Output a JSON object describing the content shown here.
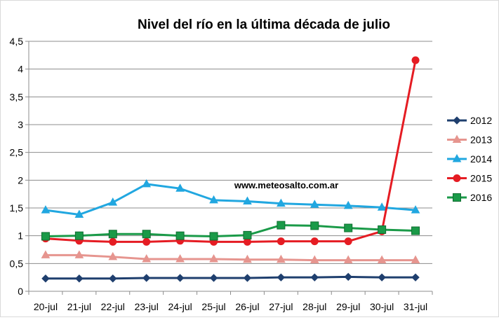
{
  "chart_data": {
    "type": "line",
    "title": "Nivel del río en la última década de julio",
    "watermark": "www.meteosalto.com.ar",
    "categories": [
      "20-jul",
      "21-jul",
      "22-jul",
      "23-jul",
      "24-jul",
      "25-jul",
      "26-jul",
      "27-jul",
      "28-jul",
      "29-jul",
      "30-jul",
      "31-jul"
    ],
    "ylim": [
      0,
      4.5
    ],
    "yticks": [
      "0",
      "0,5",
      "1",
      "1,5",
      "2",
      "2,5",
      "3",
      "3,5",
      "4",
      "4,5"
    ],
    "ytick_values": [
      0,
      0.5,
      1,
      1.5,
      2,
      2.5,
      3,
      3.5,
      4,
      4.5
    ],
    "grid": true,
    "legend_position": "right",
    "series": [
      {
        "name": "2012",
        "color": "#1f3f6e",
        "marker": "diamond",
        "values": [
          0.23,
          0.23,
          0.23,
          0.24,
          0.24,
          0.24,
          0.24,
          0.25,
          0.25,
          0.26,
          0.25,
          0.25
        ]
      },
      {
        "name": "2013",
        "color": "#e6958f",
        "marker": "triangle",
        "values": [
          0.65,
          0.65,
          0.62,
          0.58,
          0.58,
          0.58,
          0.57,
          0.57,
          0.56,
          0.56,
          0.56,
          0.56
        ]
      },
      {
        "name": "2014",
        "color": "#21a7e0",
        "marker": "triangle",
        "values": [
          1.46,
          1.38,
          1.6,
          1.93,
          1.85,
          1.64,
          1.62,
          1.58,
          1.56,
          1.54,
          1.51,
          1.46
        ]
      },
      {
        "name": "2015",
        "color": "#e51c23",
        "marker": "circle",
        "values": [
          0.95,
          0.91,
          0.89,
          0.89,
          0.91,
          0.89,
          0.89,
          0.9,
          0.9,
          0.9,
          1.08,
          4.16
        ]
      },
      {
        "name": "2016",
        "color": "#1a9a48",
        "marker": "square",
        "values": [
          0.99,
          1.0,
          1.03,
          1.03,
          1.0,
          0.99,
          1.01,
          1.19,
          1.18,
          1.14,
          1.11,
          1.09
        ]
      }
    ]
  }
}
